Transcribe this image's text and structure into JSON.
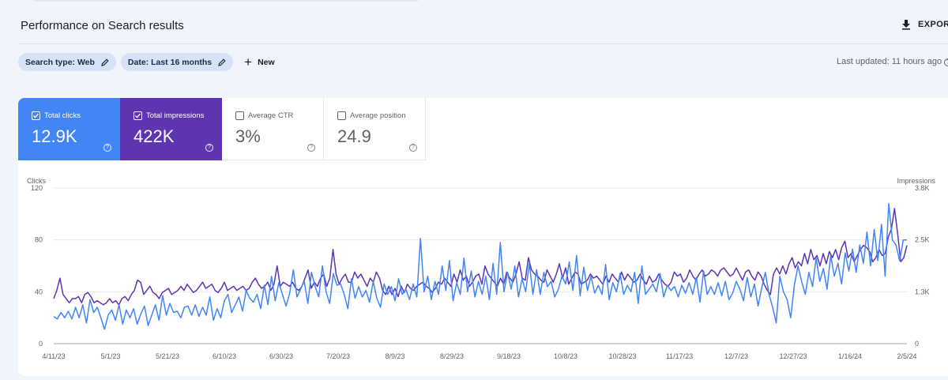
{
  "page": {
    "title": "Performance on Search results",
    "export_label": "EXPORT",
    "last_updated": "Last updated: 11 hours ago"
  },
  "filters": {
    "search_type": "Search type: Web",
    "date": "Date: Last 16 months",
    "new_label": "New"
  },
  "metrics": {
    "clicks": {
      "label": "Total clicks",
      "value": "12.9K",
      "checked": true
    },
    "impressions": {
      "label": "Total impressions",
      "value": "422K",
      "checked": true
    },
    "ctr": {
      "label": "Average CTR",
      "value": "3%",
      "checked": false
    },
    "position": {
      "label": "Average position",
      "value": "24.9",
      "checked": false
    }
  },
  "colors": {
    "clicks": "#4285f4",
    "impressions": "#5e35b1"
  },
  "chart_data": {
    "type": "line",
    "title": "",
    "ylabel_left": "Clicks",
    "ylabel_right": "Impressions",
    "y_left_ticks": [
      "0",
      "40",
      "80",
      "120"
    ],
    "y_left_range": [
      0,
      120
    ],
    "y_right_ticks": [
      "0",
      "1.3K",
      "2.5K",
      "3.8K"
    ],
    "y_right_range": [
      0,
      3800
    ],
    "x_ticks": [
      "4/11/23",
      "5/1/23",
      "5/21/23",
      "6/10/23",
      "6/30/23",
      "7/20/23",
      "8/9/23",
      "8/29/23",
      "9/18/23",
      "10/8/23",
      "10/28/23",
      "11/17/23",
      "12/7/23",
      "12/27/23",
      "1/16/24",
      "2/5/24"
    ],
    "grid": true,
    "series": [
      {
        "name": "Clicks",
        "axis": "left",
        "color": "#4285f4",
        "values": [
          21,
          19,
          24,
          20,
          25,
          19,
          28,
          20,
          30,
          16,
          34,
          24,
          28,
          20,
          11,
          22,
          26,
          18,
          30,
          15,
          26,
          20,
          27,
          15,
          23,
          29,
          14,
          22,
          30,
          18,
          37,
          22,
          31,
          24,
          25,
          20,
          28,
          29,
          22,
          30,
          21,
          28,
          22,
          36,
          18,
          27,
          20,
          33,
          38,
          24,
          30,
          36,
          25,
          41,
          35,
          32,
          38,
          27,
          45,
          30,
          52,
          33,
          47,
          38,
          29,
          39,
          57,
          36,
          42,
          48,
          31,
          55,
          44,
          36,
          60,
          40,
          31,
          54,
          45,
          46,
          38,
          27,
          50,
          35,
          44,
          36,
          41,
          32,
          48,
          35,
          28,
          46,
          38,
          44,
          33,
          50,
          38,
          42,
          34,
          46,
          36,
          81,
          40,
          52,
          34,
          48,
          38,
          60,
          41,
          64,
          33,
          47,
          38,
          66,
          40,
          56,
          36,
          48,
          38,
          52,
          34,
          62,
          38,
          78,
          40,
          55,
          42,
          60,
          36,
          50,
          40,
          62,
          38,
          57,
          38,
          55,
          44,
          48,
          36,
          42,
          52,
          46,
          63,
          41,
          68,
          37,
          59,
          41,
          52,
          39,
          45,
          38,
          61,
          34,
          47,
          40,
          54,
          38,
          45,
          40,
          55,
          31,
          60,
          38,
          42,
          46,
          40,
          54,
          36,
          45,
          41,
          44,
          36,
          45,
          39,
          47,
          38,
          51,
          32,
          56,
          38,
          44,
          38,
          47,
          37,
          48,
          34,
          39,
          48,
          42,
          33,
          51,
          36,
          46,
          29,
          43,
          55,
          38,
          28,
          16,
          52,
          40,
          34,
          20,
          45,
          60,
          48,
          38,
          55,
          44,
          66,
          48,
          58,
          42,
          68,
          52,
          62,
          46,
          70,
          56,
          73,
          55,
          76,
          62,
          86,
          60,
          88,
          64,
          92,
          52,
          108,
          80,
          76,
          64,
          80,
          80
        ],
        "note": "values per ~2 days estimated from chart"
      },
      {
        "name": "Impressions",
        "axis": "right",
        "color": "#5e35b1",
        "values": [
          1100,
          1300,
          1600,
          1200,
          1100,
          1000,
          1100,
          1100,
          1150,
          1000,
          1200,
          1250,
          1150,
          1000,
          1050,
          1000,
          950,
          1000,
          1100,
          1000,
          1050,
          950,
          1100,
          1150,
          1050,
          1200,
          1300,
          1550,
          1500,
          1200,
          1300,
          1400,
          1250,
          1200,
          1100,
          1250,
          1300,
          1350,
          1200,
          1250,
          1300,
          1400,
          1300,
          1450,
          1350,
          1250,
          1300,
          1400,
          1500,
          1350,
          1400,
          1450,
          1300,
          1250,
          1350,
          1500,
          1300,
          1350,
          1400,
          1300,
          1350,
          1400,
          1300,
          1350,
          1500,
          1600,
          1450,
          1350,
          1400,
          1500,
          1300,
          1450,
          1900,
          1400,
          1500,
          1450,
          1400,
          1500,
          1350,
          1300,
          1400,
          1600,
          1800,
          1350,
          1500,
          1400,
          1600,
          1700,
          1400,
          1600,
          2300,
          1700,
          1450,
          1600,
          1700,
          1500,
          1500,
          1750,
          1600,
          1700,
          1550,
          1400,
          1600,
          1500,
          1750,
          1600,
          1300,
          1200,
          1400,
          1200,
          1350,
          1150,
          1400,
          1250,
          1450,
          1350,
          1300,
          1400,
          1450,
          1500,
          1400,
          1350,
          1250,
          1350,
          1500,
          1450,
          1600,
          1500,
          1400,
          1700,
          1500,
          1800,
          1550,
          1650,
          1400,
          1500,
          1650,
          1700,
          1450,
          1900,
          1700,
          1600,
          1500,
          1400,
          1600,
          1450,
          1750,
          1600,
          1500,
          1700,
          2000,
          1600,
          1550,
          2100,
          1800,
          1700,
          1650,
          1550,
          1500,
          1800,
          1650,
          1500,
          1700,
          1950,
          1600,
          1850,
          1450,
          1600,
          1750,
          1700,
          1450,
          1500,
          1550,
          1700,
          1600,
          1650,
          1550,
          1450,
          1650,
          1500,
          1700,
          1600,
          1500,
          1750,
          1550,
          1700,
          1600,
          1500,
          1550,
          1700,
          1550,
          1450,
          1650,
          1500,
          1550,
          1700,
          1550,
          1450,
          1400,
          1500,
          1750,
          1650,
          1700,
          1500,
          1600,
          1800,
          1650,
          1550,
          1700,
          1800,
          1650,
          1700,
          1800,
          1750,
          1650,
          1800,
          1850,
          1750,
          1650,
          1700,
          1850,
          1700,
          1550,
          1750,
          1800,
          1650,
          1550,
          1750,
          1650,
          1450,
          1300,
          1200,
          1700,
          1850,
          1700,
          1900,
          1700,
          1950,
          2100,
          1850,
          2000,
          1900,
          2200,
          1950,
          2300,
          2050,
          2150,
          1900,
          2200,
          1950,
          2250,
          2100,
          2300,
          2050,
          2350,
          2500,
          2100,
          2200,
          2000,
          2150,
          2300,
          2400,
          2350,
          2250,
          2000,
          2100,
          2300,
          2150,
          2200,
          2600,
          2800,
          3300,
          2700,
          2000,
          2100,
          2400
        ]
      }
    ]
  }
}
